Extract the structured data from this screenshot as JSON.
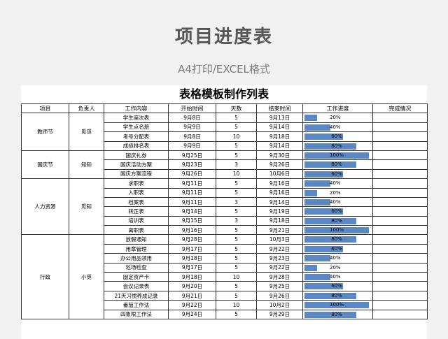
{
  "page": {
    "title": "项目进度表",
    "subtitle": "A4打印/EXCEL格式"
  },
  "sheet": {
    "title": "表格模板制作列表",
    "headers": [
      "项目",
      "负责人",
      "工作内容",
      "开始时间",
      "天数",
      "结束时间",
      "工作进度",
      "完成情况"
    ],
    "groups": [
      {
        "project": "教师节",
        "owner": "觅觅",
        "rows": [
          {
            "task": "学生座次表",
            "start": "9月8日",
            "days": "5",
            "end": "9月13日",
            "progress": 20,
            "progress_label": "20%"
          },
          {
            "task": "学生点名册",
            "start": "9月9日",
            "days": "5",
            "end": "9月14日",
            "progress": 40,
            "progress_label": "40%"
          },
          {
            "task": "考号分配表",
            "start": "9月8日",
            "days": "10",
            "end": "9月18日",
            "progress": 60,
            "progress_label": "60%"
          },
          {
            "task": "成绩排名表",
            "start": "9月9日",
            "days": "5",
            "end": "9月14日",
            "progress": 80,
            "progress_label": "80%"
          }
        ]
      },
      {
        "project": "国庆节",
        "owner": "知知",
        "rows": [
          {
            "task": "国庆礼券",
            "start": "9月25日",
            "days": "5",
            "end": "9月30日",
            "progress": 100,
            "progress_label": "100%"
          },
          {
            "task": "国庆活动方案",
            "start": "9月23日",
            "days": "3",
            "end": "9月26日",
            "progress": 80,
            "progress_label": "80%"
          },
          {
            "task": "国庆方案流程",
            "start": "9月26日",
            "days": "10",
            "end": "10月6日",
            "progress": 60,
            "progress_label": "60%"
          }
        ]
      },
      {
        "project": "人力资源",
        "owner": "觅知",
        "rows": [
          {
            "task": "求职表",
            "start": "9月11日",
            "days": "5",
            "end": "9月16日",
            "progress": 40,
            "progress_label": "40%"
          },
          {
            "task": "入职表",
            "start": "9月11日",
            "days": "5",
            "end": "9月16日",
            "progress": 20,
            "progress_label": "20%"
          },
          {
            "task": "档案表",
            "start": "9月11日",
            "days": "3",
            "end": "9月14日",
            "progress": 40,
            "progress_label": "40%"
          },
          {
            "task": "转正表",
            "start": "9月14日",
            "days": "5",
            "end": "9月19日",
            "progress": 60,
            "progress_label": "60%"
          },
          {
            "task": "培训表",
            "start": "9月15日",
            "days": "3",
            "end": "9月18日",
            "progress": 80,
            "progress_label": "80%"
          },
          {
            "task": "离职表",
            "start": "9月16日",
            "days": "5",
            "end": "9月21日",
            "progress": 100,
            "progress_label": "100%"
          }
        ]
      },
      {
        "project": "行政",
        "owner": "小觅",
        "rows": [
          {
            "task": "放假通知",
            "start": "9月28日",
            "days": "5",
            "end": "10月3日",
            "progress": 80,
            "progress_label": "80%"
          },
          {
            "task": "用章管理",
            "start": "9月17日",
            "days": "5",
            "end": "9月22日",
            "progress": 60,
            "progress_label": "60%"
          },
          {
            "task": "办公用品领用",
            "start": "9月18日",
            "days": "5",
            "end": "9月23日",
            "progress": 40,
            "progress_label": "40%"
          },
          {
            "task": "巡场检查",
            "start": "9月17日",
            "days": "5",
            "end": "9月22日",
            "progress": 20,
            "progress_label": "20%"
          },
          {
            "task": "固定资产卡",
            "start": "9月18日",
            "days": "10",
            "end": "9月28日",
            "progress": 40,
            "progress_label": "40%"
          },
          {
            "task": "会议记录表",
            "start": "9月20日",
            "days": "5",
            "end": "9月25日",
            "progress": 60,
            "progress_label": "60%"
          },
          {
            "task": "21天习惯养成记录",
            "start": "9月21日",
            "days": "5",
            "end": "9月26日",
            "progress": 80,
            "progress_label": "80%"
          },
          {
            "task": "番茄工作法",
            "start": "9月22日",
            "days": "10",
            "end": "10月2日",
            "progress": 100,
            "progress_label": "100%"
          },
          {
            "task": "四象限工作法",
            "start": "9月24日",
            "days": "5",
            "end": "9月29日",
            "progress": 80,
            "progress_label": "80%"
          }
        ]
      }
    ]
  },
  "colors": {
    "bar": "#5b87c2"
  }
}
